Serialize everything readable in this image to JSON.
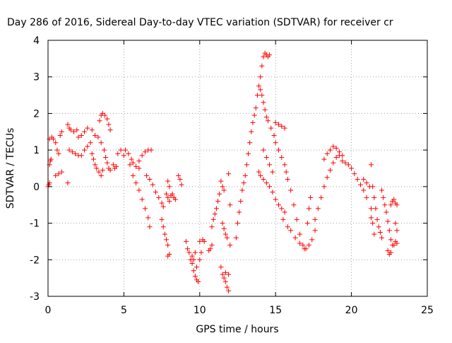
{
  "chart_data": {
    "type": "scatter",
    "title": "Day 286 of 2016, Sidereal Day-to-day VTEC variation (SDTVAR) for receiver cr",
    "xlabel": "GPS time / hours",
    "ylabel": "SDTVAR / TECUs",
    "xlim": [
      0,
      25
    ],
    "ylim": [
      -3,
      4
    ],
    "xticks": [
      0,
      5,
      10,
      15,
      20,
      25
    ],
    "yticks": [
      -3,
      -2,
      -1,
      0,
      1,
      2,
      3,
      4
    ],
    "xtick_labels": [
      "0",
      "5",
      "10",
      "15",
      "20",
      "25"
    ],
    "ytick_labels": [
      "-3",
      "-2",
      "-1",
      "0",
      "1",
      "2",
      "3",
      "4"
    ],
    "grid": true,
    "marker": "+",
    "marker_color": "#ff0000",
    "series": [
      {
        "values": [
          [
            0.0,
            0.0
          ],
          [
            0.05,
            0.05
          ],
          [
            0.1,
            0.1
          ],
          [
            0.1,
            0.6
          ],
          [
            0.1,
            1.3
          ],
          [
            0.15,
            0.7
          ],
          [
            0.2,
            0.75
          ],
          [
            0.25,
            1.35
          ],
          [
            0.35,
            1.3
          ],
          [
            0.5,
            1.2
          ],
          [
            0.6,
            1.0
          ],
          [
            0.7,
            0.9
          ],
          [
            0.8,
            1.4
          ],
          [
            0.9,
            1.5
          ],
          [
            0.5,
            0.3
          ],
          [
            0.7,
            0.35
          ],
          [
            0.9,
            0.4
          ],
          [
            1.3,
            0.1
          ],
          [
            1.3,
            1.7
          ],
          [
            1.4,
            1.6
          ],
          [
            1.5,
            1.55
          ],
          [
            1.7,
            1.5
          ],
          [
            1.9,
            1.55
          ],
          [
            2.0,
            1.35
          ],
          [
            2.2,
            1.4
          ],
          [
            2.4,
            1.5
          ],
          [
            2.6,
            1.6
          ],
          [
            2.9,
            1.55
          ],
          [
            3.1,
            1.4
          ],
          [
            1.4,
            1.0
          ],
          [
            1.6,
            0.95
          ],
          [
            1.8,
            0.9
          ],
          [
            2.0,
            0.85
          ],
          [
            2.2,
            0.85
          ],
          [
            2.4,
            1.0
          ],
          [
            2.6,
            1.1
          ],
          [
            2.8,
            1.2
          ],
          [
            2.9,
            0.9
          ],
          [
            3.0,
            0.75
          ],
          [
            3.1,
            0.6
          ],
          [
            3.2,
            0.5
          ],
          [
            3.35,
            0.4
          ],
          [
            3.5,
            0.3
          ],
          [
            3.6,
            0.45
          ],
          [
            3.4,
            1.8
          ],
          [
            3.5,
            1.95
          ],
          [
            3.6,
            2.0
          ],
          [
            3.75,
            1.95
          ],
          [
            3.9,
            1.85
          ],
          [
            4.0,
            1.7
          ],
          [
            4.1,
            1.55
          ],
          [
            3.3,
            1.35
          ],
          [
            3.5,
            1.2
          ],
          [
            3.7,
            1.0
          ],
          [
            3.8,
            0.8
          ],
          [
            3.9,
            0.65
          ],
          [
            4.0,
            0.5
          ],
          [
            4.1,
            0.45
          ],
          [
            4.3,
            0.6
          ],
          [
            4.4,
            0.5
          ],
          [
            4.5,
            0.55
          ],
          [
            4.6,
            0.9
          ],
          [
            4.8,
            1.0
          ],
          [
            5.0,
            0.85
          ],
          [
            5.1,
            1.0
          ],
          [
            5.3,
            0.9
          ],
          [
            5.5,
            0.75
          ],
          [
            5.6,
            0.65
          ],
          [
            5.8,
            0.55
          ],
          [
            6.0,
            0.5
          ],
          [
            5.4,
            0.6
          ],
          [
            5.6,
            0.3
          ],
          [
            5.8,
            0.1
          ],
          [
            6.0,
            -0.1
          ],
          [
            6.2,
            -0.35
          ],
          [
            6.4,
            -0.6
          ],
          [
            6.6,
            -0.85
          ],
          [
            6.7,
            -1.1
          ],
          [
            6.2,
            0.85
          ],
          [
            6.4,
            0.95
          ],
          [
            6.6,
            1.0
          ],
          [
            6.8,
            1.0
          ],
          [
            6.0,
            0.7
          ],
          [
            6.5,
            0.3
          ],
          [
            6.7,
            0.2
          ],
          [
            6.9,
            0.05
          ],
          [
            7.1,
            -0.15
          ],
          [
            7.3,
            -0.3
          ],
          [
            7.5,
            -0.45
          ],
          [
            7.6,
            -0.55
          ],
          [
            7.5,
            -0.9
          ],
          [
            7.6,
            -1.1
          ],
          [
            7.7,
            -1.3
          ],
          [
            7.8,
            -1.45
          ],
          [
            7.9,
            -1.6
          ],
          [
            8.0,
            -1.85
          ],
          [
            7.9,
            -1.9
          ],
          [
            7.8,
            -0.2
          ],
          [
            7.9,
            -0.3
          ],
          [
            8.0,
            -0.4
          ],
          [
            8.1,
            -0.25
          ],
          [
            7.9,
            0.15
          ],
          [
            8.0,
            0.0
          ],
          [
            8.2,
            -0.2
          ],
          [
            8.3,
            -0.3
          ],
          [
            8.4,
            -0.35
          ],
          [
            8.6,
            0.3
          ],
          [
            8.7,
            0.2
          ],
          [
            8.8,
            0.05
          ],
          [
            9.1,
            -1.5
          ],
          [
            9.2,
            -1.7
          ],
          [
            9.3,
            -1.8
          ],
          [
            9.4,
            -2.0
          ],
          [
            9.5,
            -2.1
          ],
          [
            9.6,
            -2.0
          ],
          [
            9.5,
            -1.9
          ],
          [
            9.7,
            -1.8
          ],
          [
            9.6,
            -2.3
          ],
          [
            9.7,
            -2.45
          ],
          [
            9.8,
            -2.55
          ],
          [
            9.9,
            -2.6
          ],
          [
            9.8,
            -2.2
          ],
          [
            10.0,
            -2.0
          ],
          [
            10.1,
            -1.8
          ],
          [
            10.0,
            -1.5
          ],
          [
            10.2,
            -1.45
          ],
          [
            10.3,
            -1.5
          ],
          [
            10.6,
            -1.75
          ],
          [
            10.7,
            -1.7
          ],
          [
            10.8,
            -1.6
          ],
          [
            10.8,
            -1.1
          ],
          [
            10.9,
            -0.9
          ],
          [
            11.0,
            -0.75
          ],
          [
            11.1,
            -0.6
          ],
          [
            11.2,
            -0.4
          ],
          [
            11.3,
            -0.2
          ],
          [
            11.5,
            0.0
          ],
          [
            11.6,
            -0.1
          ],
          [
            11.4,
            0.15
          ],
          [
            11.5,
            -1.0
          ],
          [
            11.6,
            -1.15
          ],
          [
            11.7,
            -1.3
          ],
          [
            11.8,
            -1.4
          ],
          [
            11.4,
            -2.2
          ],
          [
            11.5,
            -2.4
          ],
          [
            11.6,
            -2.5
          ],
          [
            11.7,
            -2.6
          ],
          [
            11.8,
            -2.75
          ],
          [
            11.9,
            -2.85
          ],
          [
            11.7,
            -2.35
          ],
          [
            11.9,
            -2.4
          ],
          [
            11.9,
            0.35
          ],
          [
            12.0,
            -0.5
          ],
          [
            12.0,
            -1.6
          ],
          [
            12.4,
            -1.4
          ],
          [
            12.5,
            -1.0
          ],
          [
            12.6,
            -0.7
          ],
          [
            12.7,
            -0.4
          ],
          [
            12.8,
            -0.1
          ],
          [
            12.9,
            0.1
          ],
          [
            13.0,
            0.3
          ],
          [
            13.1,
            0.6
          ],
          [
            13.2,
            0.9
          ],
          [
            13.3,
            1.2
          ],
          [
            13.4,
            1.5
          ],
          [
            13.5,
            1.75
          ],
          [
            13.6,
            1.95
          ],
          [
            13.7,
            2.15
          ],
          [
            13.8,
            2.5
          ],
          [
            13.9,
            2.75
          ],
          [
            14.0,
            3.0
          ],
          [
            14.1,
            3.3
          ],
          [
            14.2,
            3.55
          ],
          [
            14.3,
            3.65
          ],
          [
            14.4,
            3.6
          ],
          [
            14.5,
            3.55
          ],
          [
            14.6,
            3.6
          ],
          [
            14.0,
            2.65
          ],
          [
            14.1,
            2.5
          ],
          [
            14.2,
            2.3
          ],
          [
            14.3,
            2.1
          ],
          [
            14.4,
            1.9
          ],
          [
            13.9,
            0.4
          ],
          [
            14.0,
            0.3
          ],
          [
            14.2,
            0.2
          ],
          [
            14.4,
            0.1
          ],
          [
            14.6,
            0.0
          ],
          [
            14.8,
            -0.15
          ],
          [
            15.0,
            -0.35
          ],
          [
            15.2,
            -0.5
          ],
          [
            15.4,
            -0.6
          ],
          [
            15.6,
            -0.7
          ],
          [
            14.5,
            1.8
          ],
          [
            14.7,
            1.6
          ],
          [
            14.9,
            1.4
          ],
          [
            15.0,
            1.2
          ],
          [
            15.2,
            1.0
          ],
          [
            15.4,
            0.8
          ],
          [
            15.6,
            0.6
          ],
          [
            15.7,
            0.4
          ],
          [
            14.2,
            1.0
          ],
          [
            14.4,
            0.8
          ],
          [
            14.6,
            0.6
          ],
          [
            14.8,
            0.4
          ],
          [
            15.0,
            1.75
          ],
          [
            15.2,
            1.7
          ],
          [
            15.4,
            1.65
          ],
          [
            15.6,
            1.6
          ],
          [
            15.8,
            0.2
          ],
          [
            16.0,
            -0.1
          ],
          [
            16.2,
            -0.5
          ],
          [
            16.4,
            -0.9
          ],
          [
            16.6,
            -1.3
          ],
          [
            16.8,
            -1.6
          ],
          [
            17.0,
            -1.7
          ],
          [
            17.2,
            -1.6
          ],
          [
            17.4,
            -1.45
          ],
          [
            17.6,
            -1.2
          ],
          [
            15.5,
            -0.9
          ],
          [
            15.8,
            -1.1
          ],
          [
            16.0,
            -1.2
          ],
          [
            16.3,
            -1.4
          ],
          [
            16.6,
            -1.55
          ],
          [
            16.9,
            -1.7
          ],
          [
            17.1,
            -1.0
          ],
          [
            17.2,
            -0.6
          ],
          [
            17.3,
            -0.3
          ],
          [
            17.6,
            -0.9
          ],
          [
            17.8,
            -0.6
          ],
          [
            18.0,
            -0.3
          ],
          [
            18.2,
            0.0
          ],
          [
            18.4,
            0.25
          ],
          [
            18.6,
            0.45
          ],
          [
            18.8,
            0.65
          ],
          [
            19.0,
            0.8
          ],
          [
            19.2,
            0.85
          ],
          [
            18.2,
            0.75
          ],
          [
            18.4,
            0.9
          ],
          [
            18.6,
            1.0
          ],
          [
            18.8,
            1.1
          ],
          [
            19.0,
            1.05
          ],
          [
            19.2,
            0.95
          ],
          [
            19.4,
            0.85
          ],
          [
            19.4,
            0.7
          ],
          [
            19.6,
            0.65
          ],
          [
            19.8,
            0.6
          ],
          [
            20.0,
            0.5
          ],
          [
            20.2,
            0.35
          ],
          [
            20.4,
            0.2
          ],
          [
            20.6,
            0.05
          ],
          [
            20.8,
            -0.1
          ],
          [
            21.0,
            -0.3
          ],
          [
            20.8,
            0.2
          ],
          [
            21.0,
            0.1
          ],
          [
            21.2,
            0.0
          ],
          [
            21.3,
            0.6
          ],
          [
            21.4,
            0.0
          ],
          [
            21.5,
            -0.3
          ],
          [
            21.6,
            -0.6
          ],
          [
            21.7,
            -0.9
          ],
          [
            21.8,
            -1.1
          ],
          [
            21.9,
            -1.25
          ],
          [
            22.0,
            -1.4
          ],
          [
            21.3,
            -0.85
          ],
          [
            21.4,
            -1.0
          ],
          [
            21.5,
            -1.3
          ],
          [
            21.3,
            -0.6
          ],
          [
            22.0,
            -0.1
          ],
          [
            22.1,
            -0.3
          ],
          [
            22.2,
            -0.5
          ],
          [
            22.3,
            -0.7
          ],
          [
            22.4,
            -0.95
          ],
          [
            22.5,
            -1.2
          ],
          [
            22.6,
            -1.45
          ],
          [
            22.7,
            -1.6
          ],
          [
            22.4,
            -1.75
          ],
          [
            22.5,
            -1.85
          ],
          [
            22.6,
            -1.8
          ],
          [
            22.8,
            -1.6
          ],
          [
            22.9,
            -1.5
          ],
          [
            22.6,
            -0.5
          ],
          [
            22.7,
            -0.4
          ],
          [
            22.8,
            -0.35
          ],
          [
            22.9,
            -0.45
          ],
          [
            23.0,
            -0.5
          ],
          [
            22.9,
            -1.0
          ],
          [
            23.0,
            -1.2
          ],
          [
            23.0,
            -1.55
          ]
        ]
      }
    ]
  }
}
